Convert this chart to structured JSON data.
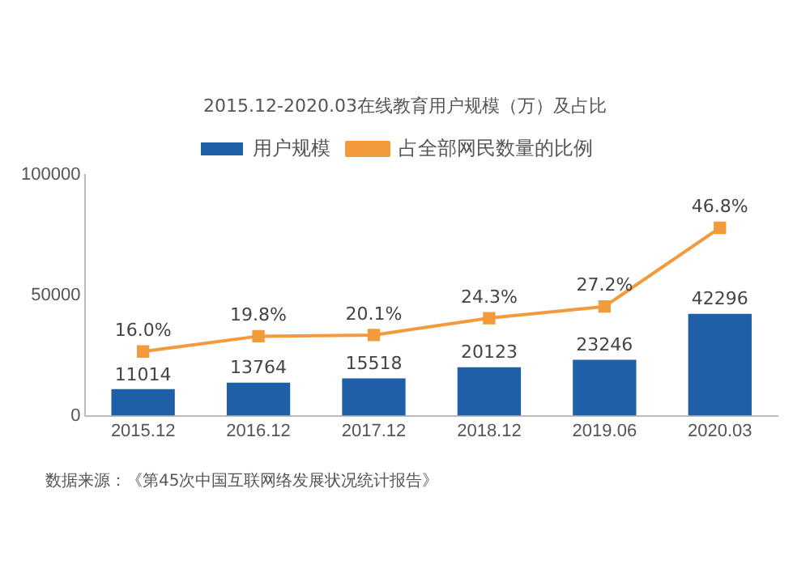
{
  "chart_data": {
    "type": "bar",
    "title": "2015.12-2020.03在线教育用户规模（万）及占比",
    "categories": [
      "2015.12",
      "2016.12",
      "2017.12",
      "2018.12",
      "2019.06",
      "2020.03"
    ],
    "series": [
      {
        "name": "用户规模",
        "color": "#1f5fa8",
        "values": [
          11014,
          13764,
          15518,
          20123,
          23246,
          42296
        ]
      },
      {
        "name": "占全部网民数量的比例",
        "type": "line",
        "axis": "y2",
        "color": "#f39a3c",
        "marker": "square",
        "value_labels": [
          "16.0%",
          "19.8%",
          "20.1%",
          "24.3%",
          "27.2%",
          "46.8%"
        ],
        "values": [
          16.0,
          19.8,
          20.1,
          24.3,
          27.2,
          46.8
        ]
      }
    ],
    "ylim": [
      0,
      100000
    ],
    "yticks": [
      0,
      50000,
      100000
    ],
    "y2lim": [
      0,
      60
    ],
    "tick_labels": "xy",
    "grid": false,
    "legend": "top",
    "data_labels": true,
    "annotations": [
      "数据来源：《第45次中国互联网络发展状况统计报告》"
    ]
  }
}
